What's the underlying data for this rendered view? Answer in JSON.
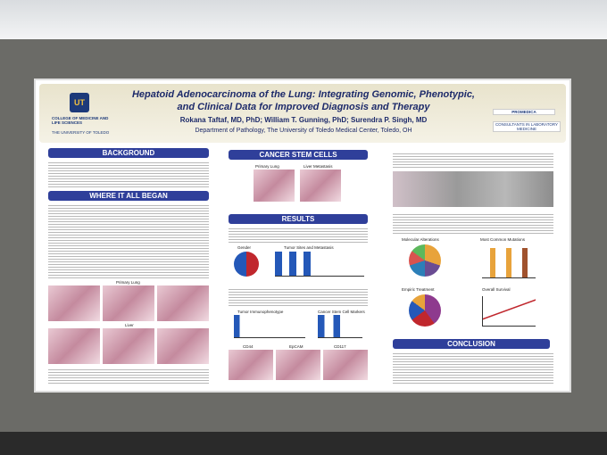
{
  "header": {
    "title_line1": "Hepatoid Adenocarcinoma of the Lung: Integrating Genomic, Phenotypic,",
    "title_line2": "and Clinical Data for Improved Diagnosis and Therapy",
    "authors": "Rokana Taftaf, MD, PhD; William T. Gunning, PhD; Surendra P. Singh, MD",
    "department": "Department of Pathology, The University of Toledo Medical Center, Toledo, OH",
    "logo": "UT",
    "college": "COLLEGE OF MEDICINE AND LIFE SCIENCES",
    "university": "THE UNIVERSITY OF TOLEDO",
    "sponsors": [
      "PROMEDICA",
      "CONSULTANTS IN LABORATORY MEDICINE"
    ]
  },
  "sections": {
    "background": "BACKGROUND",
    "began": "WHERE IT ALL BEGAN",
    "stem": "CANCER STEM CELLS",
    "results": "RESULTS",
    "conclusion": "CONCLUSION"
  },
  "figures": {
    "primary_lung": "Primary Lung",
    "liver": "Liver",
    "liver_metastasis": "Liver Metastasis",
    "gender": "Gender",
    "tumor_sites": "Tumor Sites and Metastasis",
    "immuno": "Tumor Immunophenotype",
    "csc_markers": "Cancer Stem Cell Markers",
    "cd44": "CD44",
    "epcam": "EpCAM",
    "cd117": "CD117",
    "molecular": "Molecular Alterations",
    "mutations": "Most Common Mutations",
    "treatment": "Empiric Treatment",
    "survival": "Overall Survival"
  }
}
